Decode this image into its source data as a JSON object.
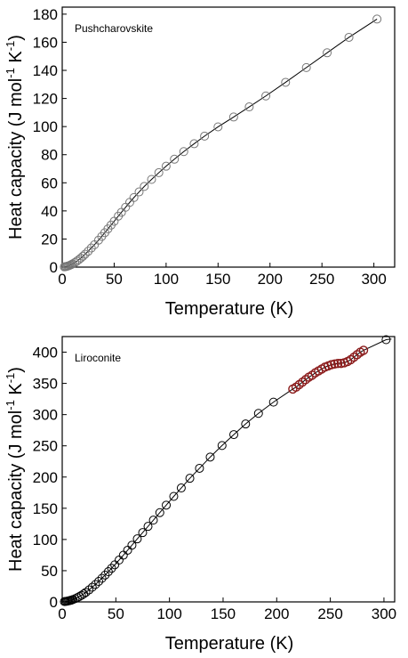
{
  "chart_data": [
    {
      "type": "scatter",
      "title": "",
      "annotation": "Pushcharovskite",
      "xlabel": "Temperature (K)",
      "ylabel_main": "Heat capacity (J mol",
      "ylabel_sup1": "-1",
      "ylabel_mid": " K",
      "ylabel_sup2": "-1",
      "ylabel_end": ")",
      "xlim": [
        0,
        320
      ],
      "ylim": [
        0,
        185
      ],
      "xticks": [
        0,
        50,
        100,
        150,
        200,
        250,
        300
      ],
      "yticks": [
        0,
        20,
        40,
        60,
        80,
        100,
        120,
        140,
        160,
        180
      ],
      "marker_color": "#777777",
      "line_color": "#000000",
      "x": [
        2,
        3,
        4,
        5,
        6,
        7,
        8,
        9,
        10,
        12,
        14,
        16,
        18,
        20,
        22,
        25,
        28,
        31,
        35,
        38,
        41,
        44,
        47,
        50,
        54,
        57,
        61,
        65,
        69,
        74,
        79,
        86,
        93,
        100,
        108,
        117,
        127,
        137,
        150,
        165,
        180,
        196,
        215,
        235,
        255,
        276,
        303
      ],
      "y": [
        0.2,
        0.3,
        0.5,
        0.7,
        0.9,
        1.2,
        1.5,
        1.9,
        2.3,
        3.2,
        4.2,
        5.3,
        6.5,
        7.8,
        9.2,
        11.3,
        13.6,
        15.9,
        19.2,
        21.8,
        24.5,
        27.2,
        29.9,
        32.6,
        36.3,
        39.0,
        42.6,
        46.1,
        49.5,
        53.5,
        57.4,
        62.4,
        67.2,
        71.8,
        76.8,
        82.2,
        87.8,
        93.2,
        99.8,
        106.8,
        114.0,
        121.8,
        131.5,
        142.0,
        152.5,
        163.5,
        176.5
      ]
    },
    {
      "type": "scatter",
      "title": "",
      "annotation": "Liroconite",
      "xlabel": "Temperature (K)",
      "ylabel_main": "Heat capacity (J mol",
      "ylabel_sup1": "-1",
      "ylabel_mid": " K",
      "ylabel_sup2": "-1",
      "ylabel_end": ")",
      "xlim": [
        0,
        310
      ],
      "ylim": [
        0,
        425
      ],
      "xticks": [
        0,
        50,
        100,
        150,
        200,
        250,
        300
      ],
      "yticks": [
        0,
        50,
        100,
        150,
        200,
        250,
        300,
        350,
        400
      ],
      "marker_color": "#000000",
      "dense_marker_color": "#8a1a1a",
      "line_color": "#000000",
      "x": [
        2,
        3,
        4,
        5,
        6,
        7,
        8,
        9,
        10,
        12,
        14,
        16,
        18,
        20,
        22,
        25,
        28,
        31,
        34,
        37,
        40,
        43,
        46,
        49,
        53,
        57,
        61,
        65,
        70,
        75,
        80,
        85,
        91,
        97,
        104,
        111,
        119,
        128,
        138,
        149,
        160,
        171,
        183,
        197,
        215,
        218,
        221,
        224,
        227,
        230,
        233,
        236,
        239,
        242,
        245,
        248,
        251,
        254,
        257,
        260,
        263,
        266,
        269,
        272,
        275,
        278,
        281,
        302
      ],
      "y": [
        0.5,
        0.7,
        1.0,
        1.3,
        1.7,
        2.1,
        2.6,
        3.2,
        3.8,
        5.2,
        6.8,
        8.6,
        10.6,
        12.8,
        15.2,
        19.2,
        23.5,
        28.0,
        32.8,
        37.8,
        43.0,
        48.4,
        53.8,
        59.4,
        67.0,
        74.8,
        82.8,
        90.8,
        101.0,
        111.0,
        121.0,
        131.0,
        143.0,
        155.0,
        169.0,
        182.5,
        198.0,
        214.0,
        232.0,
        250.5,
        268.0,
        285.0,
        302.0,
        320.0,
        341.0,
        344.0,
        348.0,
        352.0,
        356.0,
        360.0,
        363.0,
        367.0,
        370.0,
        373.0,
        376.0,
        378.0,
        380.0,
        381.0,
        382.0,
        382.0,
        383.0,
        385.0,
        388.0,
        392.0,
        396.0,
        400.0,
        403.0,
        420.0
      ],
      "dense_from_index": 44
    }
  ]
}
